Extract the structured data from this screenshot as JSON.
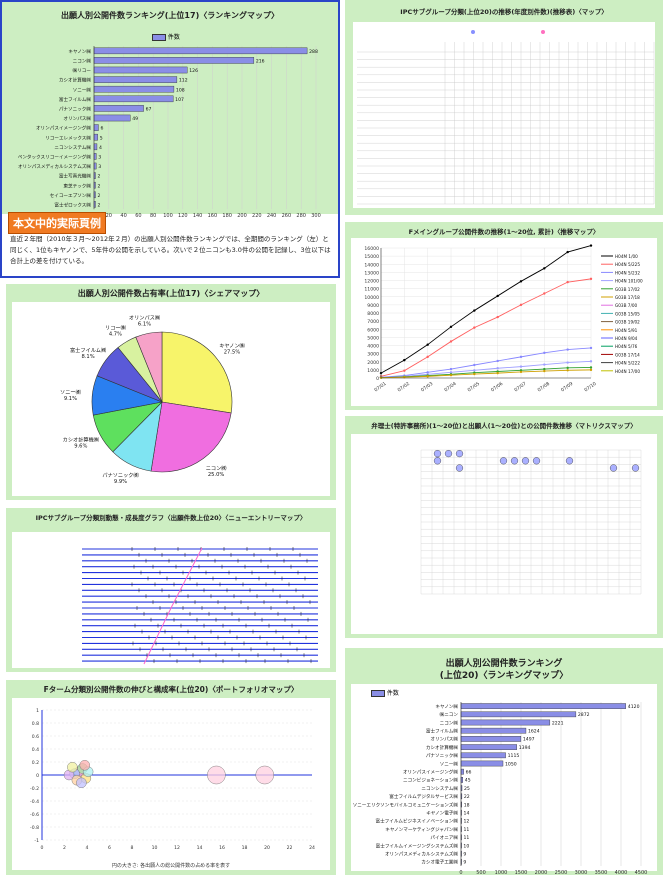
{
  "panel_top_left": {
    "title": "出願人別公開件数ランキング(上位17)〈ランキングマップ〉",
    "legend": "件数",
    "badge": "本文中的実际頁例",
    "note": "直近２年間（2010年３月〜2012年２月）の出願人別公開件数ランキングでは、全期間のランキング（左）と同じく、1位もキヤノンで、5年件の公開を示している。次いで２位ニコンも3.0件の公開を記録し、3位以下は合計上の差を付けている。"
  },
  "panel_pie": {
    "title": "出願人別公開件数占有率(上位17)〈シェアマップ〉"
  },
  "panel_portfolio": {
    "title": "IPCサブグループ分類別動態・成長度グラフ〈出願件数上位20〉〈ニューエントリーマップ〉",
    "title2": "Fターム分類別公開件数の伸びと構成率(上位20)〈ポートフォリオマップ〉",
    "footnote": "円の大きさ: 各出願人の総公開件数の占める率を表す"
  },
  "panel_top_right": {
    "title": "IPCサブグループ分類(上位20)の推移(年度別件数)(推移表)〈マップ〉",
    "title_line": "Fメイングループ公開件数の推移(1〜20位, 累計)〈推移マップ〉",
    "title_matrix": "弁理士(特許事務所)(1〜20位)と出願人(1〜20位)との公開件数推移〈マトリクスマップ〉",
    "title_bottom": "出願人別公開件数ランキング",
    "subtitle_bottom": "(上位20)〈ランキングマップ〉",
    "legend_bottom": "件数"
  },
  "chart_data": [
    {
      "type": "bar",
      "id": "ranking-top17",
      "categories": [
        "キヤノン㈱",
        "ニコン㈱",
        "㈱リコー",
        "カシオ計算機㈱",
        "ソニー㈱",
        "富士フイルム㈱",
        "パナソニック㈱",
        "オリンパス㈱",
        "オリンパスイメージング㈱",
        "リコーエレメックス㈱",
        "ニコンシステム㈱",
        "ペンタックスリコーイメージング㈱",
        "オリンパスメディカルシステムズ㈱",
        "富士写真光機㈱",
        "東芝テック㈱",
        "セイコーエプソン㈱",
        "富士ゼロックス㈱"
      ],
      "values": [
        288,
        216,
        126,
        112,
        108,
        107,
        67,
        49,
        6,
        5,
        4,
        3,
        3,
        2,
        2,
        2,
        2
      ],
      "xlim": [
        0,
        300
      ],
      "ticks": [
        0,
        20,
        40,
        60,
        80,
        100,
        120,
        140,
        160,
        180,
        200,
        220,
        240,
        260,
        280,
        300
      ]
    },
    {
      "type": "pie",
      "id": "share-pie",
      "labels": [
        "キヤノン㈱",
        "ニコン㈱",
        "パナソニック㈱",
        "カシオ計算機㈱",
        "ソニー㈱",
        "富士フイルム㈱",
        "リコー㈱",
        "オリンパス㈱"
      ],
      "values": [
        27.5,
        25.0,
        9.9,
        9.6,
        9.1,
        8.1,
        4.7,
        6.1
      ],
      "label_texts": [
        "キヤノン㈱ 27.5%",
        "ニコン㈱ 25.0%",
        "パナソニック㈱ 9.9%",
        "カシオ計算機㈱ 9.6%",
        "ソニー㈱ 9.1%",
        "富士フイルム㈱ 8.1%",
        "リコー㈱ 4.7%",
        "オリンパス㈱ 6.1%"
      ],
      "colors": [
        "#f7f46a",
        "#f06ee0",
        "#7fe4f2",
        "#5ee05e",
        "#2a7ff0",
        "#5a5ad8",
        "#d8f2a0",
        "#f6a2c8"
      ]
    },
    {
      "type": "bar",
      "id": "ranking-top20",
      "categories": [
        "キヤノン㈱",
        "㈱ニコン",
        "ニコン㈱",
        "富士フイルム㈱",
        "オリンパス㈱",
        "カシオ計算機㈱",
        "パナソニック㈱",
        "ソニー㈱",
        "オリンパスイメージング㈱",
        "ニコンビジョネーション㈱",
        "ニコンシステム㈱",
        "富士フイルムデジタルサービス㈱",
        "ソニーエリクソンモバイルコミュニケーションズ㈱",
        "キヤノン電子㈱",
        "富士フイルムビジネスイノベーション㈱",
        "キヤノンマーケティングジャパン㈱",
        "パイオニア㈱",
        "富士フイルムイメージングシステムズ㈱",
        "オリンパスメディカルシステムズ㈱",
        "カシオ電子工業㈱"
      ],
      "values": [
        4120,
        2872,
        2221,
        1624,
        1497,
        1394,
        1115,
        1050,
        66,
        45,
        25,
        22,
        18,
        14,
        12,
        11,
        11,
        10,
        9,
        9
      ],
      "xlim": [
        0,
        4500
      ],
      "ticks": [
        0,
        500,
        1000,
        1500,
        2000,
        2500,
        3000,
        3500,
        4000,
        4500
      ]
    },
    {
      "type": "line",
      "id": "cumulative-line",
      "x": [
        "07/01",
        "07/02",
        "07/03",
        "07/04",
        "07/05",
        "07/06",
        "07/07",
        "07/08",
        "07/09",
        "07/10"
      ],
      "series": [
        {
          "name": "H04N 5/225",
          "values": [
            600,
            2200,
            4100,
            6300,
            8300,
            10100,
            11900,
            13500,
            15500,
            16300
          ],
          "color": "#000000"
        },
        {
          "name": "H04N 5/232",
          "values": [
            200,
            900,
            2600,
            4500,
            6200,
            7500,
            9000,
            10400,
            11800,
            12200
          ],
          "color": "#ff6060"
        },
        {
          "name": "H04N 101/00",
          "values": [
            100,
            300,
            700,
            1100,
            1600,
            2100,
            2600,
            3100,
            3500,
            3700
          ],
          "color": "#8888ff"
        },
        {
          "name": "G03B 17/02",
          "values": [
            50,
            200,
            450,
            700,
            950,
            1200,
            1400,
            1650,
            1900,
            2050
          ],
          "color": "#a0a0ff"
        },
        {
          "name": "G03B 17/18",
          "values": [
            40,
            150,
            300,
            450,
            650,
            800,
            950,
            1100,
            1250,
            1300
          ],
          "color": "#30a030"
        },
        {
          "name": "H04N 5/91",
          "values": [
            30,
            100,
            200,
            350,
            480,
            600,
            750,
            850,
            950,
            1000
          ],
          "color": "#d0a000"
        }
      ],
      "ylim": [
        0,
        16000
      ],
      "yticks": [
        0,
        1000,
        2000,
        3000,
        4000,
        5000,
        6000,
        7000,
        8000,
        9000,
        10000,
        11000,
        12000,
        13000,
        14000,
        15000,
        16000
      ],
      "legend": [
        "H04M 1/00",
        "H04N 5/225",
        "H04N 5/232",
        "H04N 101/00",
        "G03B 17/02",
        "G03B 17/18",
        "G03B 7/00",
        "G03B 15/05",
        "G03B 19/02",
        "H04N 5/91",
        "H04N 9/04",
        "H04N 5/76",
        "G03B 17/14",
        "H04N 5/222",
        "H04N 17/00"
      ]
    },
    {
      "type": "scatter",
      "id": "portfolio-bubble",
      "xlim": [
        0,
        24
      ],
      "ylim": [
        -1,
        1
      ],
      "xticks": [
        0,
        2,
        4,
        6,
        8,
        10,
        12,
        14,
        16,
        18,
        20,
        22,
        24
      ],
      "yticks": [
        -1,
        -0.8,
        -0.6,
        -0.4,
        -0.2,
        0,
        0.2,
        0.4,
        0.6,
        0.8,
        1
      ],
      "points": [
        {
          "x": 3.3,
          "y": 0.05
        },
        {
          "x": 3.6,
          "y": 0.1
        },
        {
          "x": 3.9,
          "y": -0.05
        },
        {
          "x": 2.9,
          "y": 0.02
        },
        {
          "x": 2.4,
          "y": 0.0
        },
        {
          "x": 3.1,
          "y": -0.08
        },
        {
          "x": 4.1,
          "y": 0.05
        },
        {
          "x": 2.7,
          "y": 0.12
        },
        {
          "x": 3.5,
          "y": -0.12
        },
        {
          "x": 3.8,
          "y": 0.15
        },
        {
          "x": 15.5,
          "y": 0.0
        },
        {
          "x": 19.8,
          "y": 0.0
        }
      ]
    }
  ]
}
